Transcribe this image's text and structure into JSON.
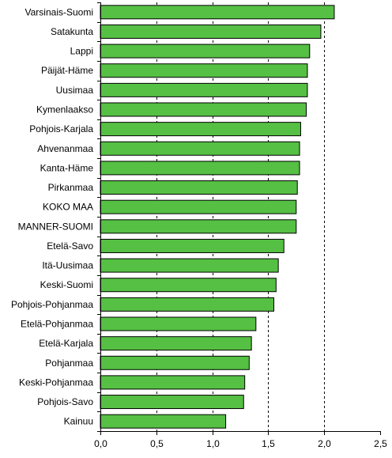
{
  "chart_data": {
    "type": "bar",
    "orientation": "horizontal",
    "title": "",
    "xlabel": "",
    "ylabel": "",
    "xlim": [
      0,
      2.5
    ],
    "x_ticks": [
      "0,0",
      "0,5",
      "1,0",
      "1,5",
      "2,0",
      "2,5"
    ],
    "grid": "dashed vertical lines at 0.5, 1.0, 1.5, 2.0",
    "bar_color": "#55c043",
    "bar_edge_color": "#000000",
    "categories": [
      "Varsinais-Suomi",
      "Satakunta",
      "Lappi",
      "Päijät-Häme",
      "Uusimaa",
      "Kymenlaakso",
      "Pohjois-Karjala",
      "Ahvenanmaa",
      "Kanta-Häme",
      "Pirkanmaa",
      "KOKO MAA",
      "MANNER-SUOMI",
      "Etelä-Savo",
      "Itä-Uusimaa",
      "Keski-Suomi",
      "Pohjois-Pohjanmaa",
      "Etelä-Pohjanmaa",
      "Etelä-Karjala",
      "Pohjanmaa",
      "Keski-Pohjanmaa",
      "Pohjois-Savo",
      "Kainuu"
    ],
    "values": [
      2.09,
      1.97,
      1.87,
      1.85,
      1.85,
      1.84,
      1.79,
      1.78,
      1.78,
      1.76,
      1.75,
      1.75,
      1.64,
      1.59,
      1.57,
      1.55,
      1.39,
      1.35,
      1.33,
      1.29,
      1.28,
      1.12
    ]
  }
}
